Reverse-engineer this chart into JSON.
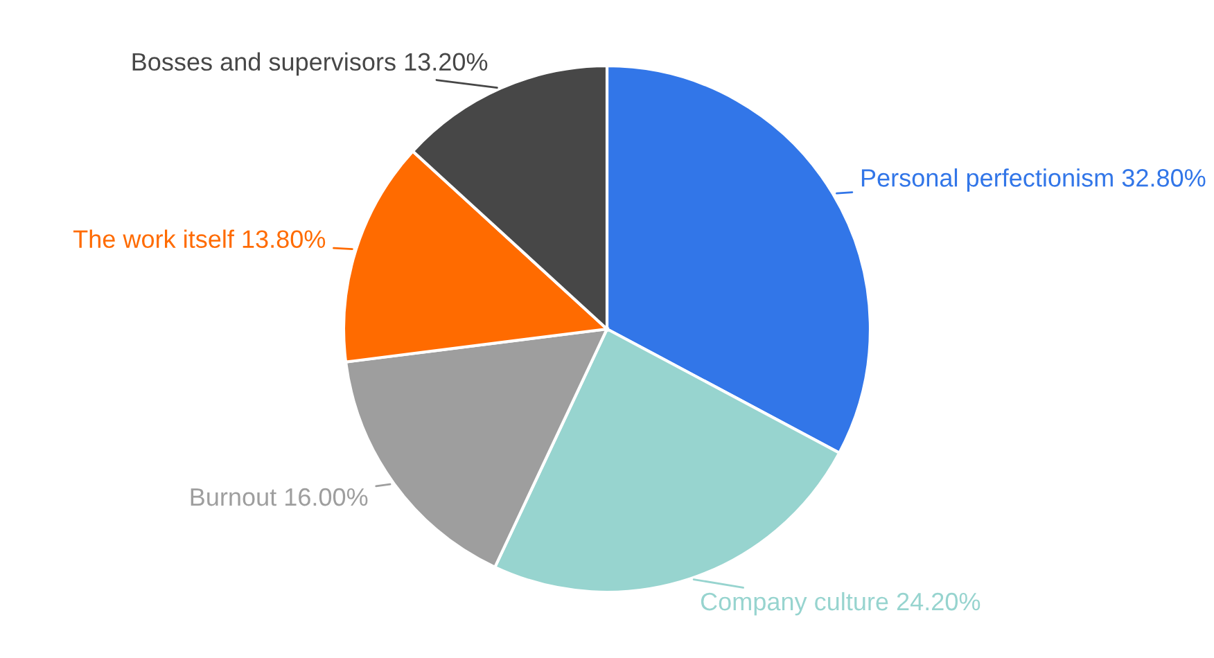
{
  "chart_data": {
    "type": "pie",
    "categories": [
      "Personal perfectionism",
      "Company culture",
      "Burnout",
      "The work itself",
      "Bosses and supervisors"
    ],
    "values": [
      32.8,
      24.2,
      16.0,
      13.8,
      13.2
    ],
    "value_labels": [
      "32.80%",
      "24.20%",
      "16.00%",
      "13.80%",
      "13.20%"
    ],
    "colors": [
      "#3276e8",
      "#97d4cf",
      "#9e9e9e",
      "#ff6b00",
      "#474747"
    ]
  }
}
